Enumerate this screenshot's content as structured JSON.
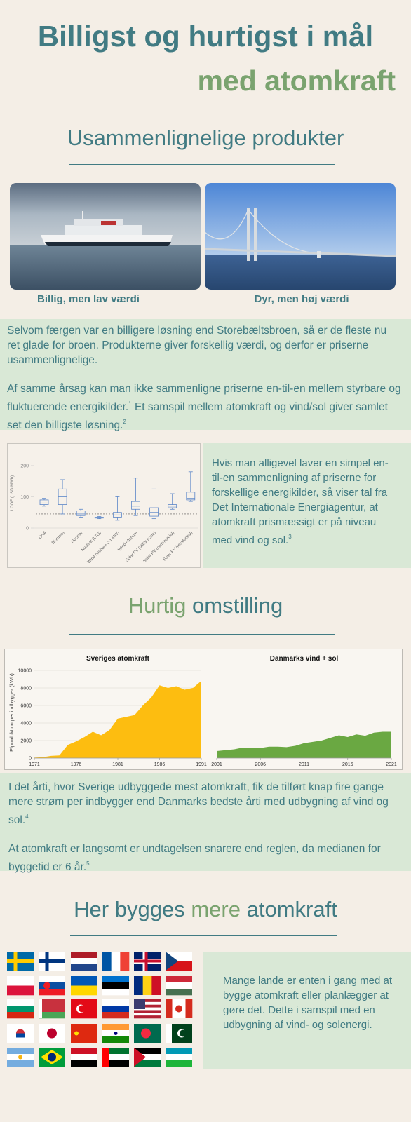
{
  "title": {
    "line1": "Billigst og hurtigst i mål",
    "line2": "med atomkraft"
  },
  "section1": {
    "heading": "Usammenlignelige produkter",
    "captions": [
      "Billig, men lav værdi",
      "Dyr, men høj værdi"
    ],
    "paragraphs": [
      [
        {
          "text": "Selvom færgen var en billigere løsning end Storebæltsbroen, så er de fleste nu ret glade for broen. Produkterne giver forskellig værdi, og derfor er priserne usammenlignelige."
        }
      ],
      [
        {
          "text": "Af samme årsag kan man ikke sammenligne priserne en-til-en mellem styrbare og fluktuerende energikilder.",
          "note": "1"
        },
        {
          "text": "Et samspil mellem atomkraft og vind/sol giver samlet set den billigste løsning.",
          "note": "2"
        }
      ]
    ],
    "side_text": [
      {
        "text": "Hvis man alligevel laver en simpel en-til-en sammenligning af priserne for forskellige energikilder, så viser tal fra Det Internationale Energiagentur, at atomkraft prismæssigt er på niveau med vind og sol.",
        "note": "3"
      }
    ]
  },
  "section2": {
    "heading": [
      "Hurtig",
      "omstilling"
    ],
    "paragraphs": [
      [
        {
          "text": "I det årti, hvor Sverige udbyggede mest atomkraft, fik de tilført knap fire gange mere strøm per indbygger end Danmarks bedste årti med udbygning af vind og sol.",
          "note": "4"
        }
      ],
      [
        {
          "text": "At atomkraft er langsomt er undtagelsen snarere end reglen, da medianen for byggetid er 6 år.",
          "note": "5"
        }
      ]
    ]
  },
  "section3": {
    "heading": [
      "Her bygges",
      "mere",
      "atomkraft"
    ],
    "side_text": [
      {
        "text": "Mange lande er enten i gang med at bygge atomkraft eller planlægger at gøre det. Dette i samspil med en udbygning af vind- og solenergi."
      }
    ]
  },
  "chart_data": [
    {
      "type": "box",
      "y_label": "LCOE (USD/MWh)",
      "categories": [
        "Coal",
        "Biomass",
        "Nuclear",
        "Nuclear (LTO)",
        "Wind onshore (>1 MW)",
        "Wind offshore",
        "Solar PV (utility scale)",
        "Solar PV (commercial)",
        "Solar PV (residential)"
      ],
      "boxes": [
        {
          "min": 70,
          "q1": 75,
          "median": 80,
          "q3": 90,
          "max": 95
        },
        {
          "min": 45,
          "q1": 75,
          "median": 100,
          "q3": 125,
          "max": 155
        },
        {
          "min": 35,
          "q1": 40,
          "median": 45,
          "q3": 55,
          "max": 60
        },
        {
          "min": 30,
          "q1": 32,
          "median": 33,
          "q3": 35,
          "max": 37
        },
        {
          "min": 25,
          "q1": 35,
          "median": 42,
          "q3": 50,
          "max": 100
        },
        {
          "min": 40,
          "q1": 60,
          "median": 70,
          "q3": 85,
          "max": 160
        },
        {
          "min": 30,
          "q1": 38,
          "median": 50,
          "q3": 65,
          "max": 125
        },
        {
          "min": 60,
          "q1": 65,
          "median": 70,
          "q3": 75,
          "max": 110
        },
        {
          "min": 85,
          "q1": 90,
          "median": 95,
          "q3": 115,
          "max": 180
        }
      ],
      "reference_line": 45,
      "ylim": [
        0,
        220
      ],
      "yticks": [
        0,
        100,
        200
      ],
      "color": "#5b86c8"
    },
    {
      "type": "area",
      "title": "Sveriges atomkraft",
      "y_label": "Elproduktion per indbygger (kWh)",
      "x": [
        1971,
        1972,
        1973,
        1974,
        1975,
        1976,
        1977,
        1978,
        1979,
        1980,
        1981,
        1982,
        1983,
        1984,
        1985,
        1986,
        1987,
        1988,
        1989,
        1990,
        1991
      ],
      "values": [
        50,
        100,
        250,
        300,
        1500,
        1900,
        2400,
        3000,
        2600,
        3200,
        4500,
        4700,
        4900,
        6000,
        6900,
        8300,
        8000,
        8200,
        7800,
        8000,
        8800
      ],
      "xlim": [
        1971,
        1991
      ],
      "xticks": [
        1971,
        1976,
        1981,
        1986,
        1991
      ],
      "ylim": [
        0,
        10000
      ],
      "yticks": [
        0,
        2000,
        4000,
        6000,
        8000,
        10000
      ],
      "grid": true,
      "color": "#fdbd10"
    },
    {
      "type": "area",
      "title": "Danmarks vind + sol",
      "x": [
        2001,
        2002,
        2003,
        2004,
        2005,
        2006,
        2007,
        2008,
        2009,
        2010,
        2011,
        2012,
        2013,
        2014,
        2015,
        2016,
        2017,
        2018,
        2019,
        2020,
        2021
      ],
      "values": [
        800,
        900,
        1000,
        1200,
        1200,
        1150,
        1300,
        1300,
        1250,
        1400,
        1700,
        1850,
        2000,
        2300,
        2600,
        2400,
        2700,
        2550,
        2900,
        3000,
        3000
      ],
      "xlim": [
        2001,
        2021
      ],
      "xticks": [
        2001,
        2006,
        2011,
        2016,
        2021
      ],
      "ylim": [
        0,
        10000
      ],
      "color": "#6aa842"
    }
  ]
}
